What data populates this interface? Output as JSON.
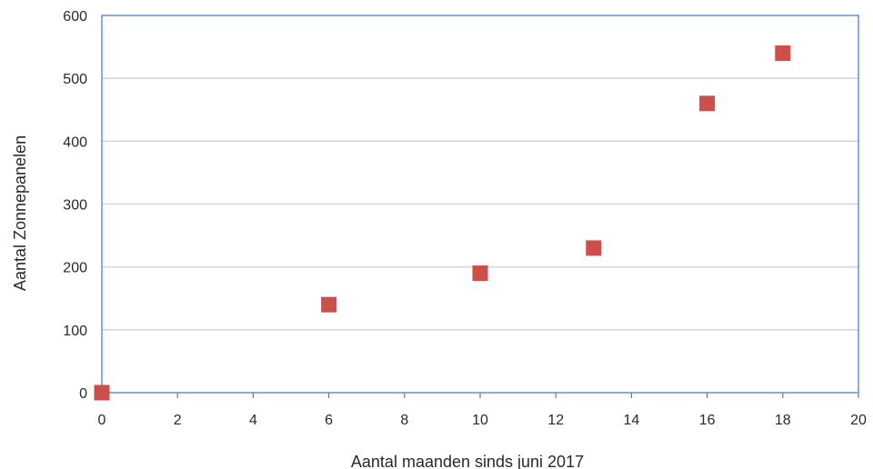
{
  "chart_data": {
    "type": "scatter",
    "title": "",
    "xlabel": "Aantal maanden sinds  juni 2017",
    "ylabel": "Aantal  Zonnepanelen",
    "xlim": [
      0,
      20
    ],
    "ylim": [
      0,
      600
    ],
    "xticks": [
      0,
      2,
      4,
      6,
      8,
      10,
      12,
      14,
      16,
      18,
      20
    ],
    "yticks": [
      0,
      100,
      200,
      300,
      400,
      500,
      600
    ],
    "grid": "horizontal",
    "legend": "none",
    "series": [
      {
        "marker": "square",
        "color": "#cd4f4a",
        "x": [
          0,
          6,
          10,
          13,
          16,
          18
        ],
        "y": [
          0,
          140,
          190,
          230,
          460,
          540
        ]
      }
    ],
    "colors": {
      "plot_border": "#4f7fc5",
      "gridline": "#d6d6d6",
      "marker": "#cd4f4a"
    }
  }
}
